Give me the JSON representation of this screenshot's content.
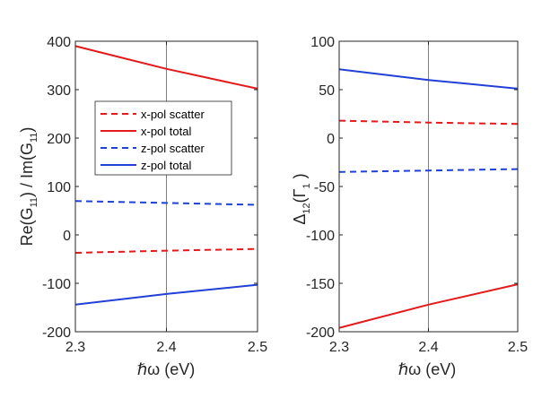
{
  "colors": {
    "red": "#e31a1c",
    "blue": "#2140d6",
    "axis": "#262626",
    "refline": "#7f7f7f"
  },
  "chart_data": [
    {
      "type": "line",
      "panel": "left",
      "x": [
        2.3,
        2.4,
        2.5
      ],
      "xlim": [
        2.3,
        2.5
      ],
      "ylim": [
        -200,
        400
      ],
      "xticks": [
        "2.3",
        "2.4",
        "2.5"
      ],
      "yticks": [
        "-200",
        "-100",
        "0",
        "100",
        "200",
        "300",
        "400"
      ],
      "xlabel": "ℏω (eV)",
      "ylabel": "Re(G₁₁) / Im(G₁₁)",
      "ylabel_parts": {
        "a": "Re(G",
        "a_sub": "11",
        "b": ") / Im(G",
        "b_sub": "11",
        "c": ")"
      },
      "reference_line_x": 2.4,
      "series": [
        {
          "name": "x-pol scatter",
          "color": "red",
          "dash": true,
          "values": [
            -37,
            -32.5,
            -29
          ]
        },
        {
          "name": "x-pol total",
          "color": "red",
          "dash": false,
          "values": [
            390,
            343,
            302
          ]
        },
        {
          "name": "z-pol scatter",
          "color": "blue",
          "dash": true,
          "values": [
            70,
            66,
            62
          ]
        },
        {
          "name": "z-pol total",
          "color": "blue",
          "dash": false,
          "values": [
            -144,
            -122,
            -103
          ]
        }
      ],
      "legend": {
        "location": "upper-left",
        "entries": [
          "x-pol scatter",
          "x-pol total",
          "z-pol scatter",
          "z-pol total"
        ]
      }
    },
    {
      "type": "line",
      "panel": "right",
      "x": [
        2.3,
        2.4,
        2.5
      ],
      "xlim": [
        2.3,
        2.5
      ],
      "ylim": [
        -200,
        100
      ],
      "xticks": [
        "2.3",
        "2.4",
        "2.5"
      ],
      "yticks": [
        "-200",
        "-150",
        "-100",
        "-50",
        "0",
        "50",
        "100"
      ],
      "xlabel": "ℏω (eV)",
      "ylabel": "Δ₁₂(Γ₁ )",
      "ylabel_parts": {
        "a": "Δ",
        "a_sub": "12",
        "b": "(Γ",
        "b_sub": "1",
        "c": " )"
      },
      "reference_line_x": 2.4,
      "series": [
        {
          "name": "x-pol scatter",
          "color": "red",
          "dash": true,
          "values": [
            18,
            16,
            14.5
          ]
        },
        {
          "name": "x-pol total",
          "color": "red",
          "dash": false,
          "values": [
            -196,
            -172,
            -151
          ]
        },
        {
          "name": "z-pol scatter",
          "color": "blue",
          "dash": true,
          "values": [
            -35,
            -33.5,
            -32
          ]
        },
        {
          "name": "z-pol total",
          "color": "blue",
          "dash": false,
          "values": [
            71,
            60,
            51
          ]
        }
      ]
    }
  ]
}
